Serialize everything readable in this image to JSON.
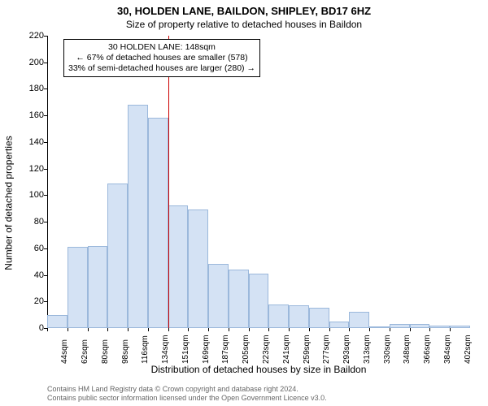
{
  "chart": {
    "type": "histogram",
    "title": "30, HOLDEN LANE, BAILDON, SHIPLEY, BD17 6HZ",
    "subtitle": "Size of property relative to detached houses in Baildon",
    "ylabel": "Number of detached properties",
    "xlabel": "Distribution of detached houses by size in Baildon",
    "ylim": [
      0,
      220
    ],
    "ytick_step": 20,
    "yticks": [
      0,
      20,
      40,
      60,
      80,
      100,
      120,
      140,
      160,
      180,
      200,
      220
    ],
    "xtick_labels": [
      "44sqm",
      "62sqm",
      "80sqm",
      "98sqm",
      "116sqm",
      "134sqm",
      "151sqm",
      "169sqm",
      "187sqm",
      "205sqm",
      "223sqm",
      "241sqm",
      "259sqm",
      "277sqm",
      "293sqm",
      "313sqm",
      "330sqm",
      "348sqm",
      "366sqm",
      "384sqm",
      "402sqm"
    ],
    "values": [
      10,
      61,
      62,
      109,
      168,
      158,
      92,
      89,
      48,
      44,
      41,
      18,
      17,
      15,
      5,
      12,
      1,
      3,
      3,
      2,
      2
    ],
    "bar_fill": "#d4e2f4",
    "bar_stroke": "#9bb8db",
    "background": "#ffffff",
    "axis_color": "#000000",
    "ref_line": {
      "index": 6,
      "color": "#cc0000"
    },
    "annotation": {
      "lines": [
        "30 HOLDEN LANE: 148sqm",
        "← 67% of detached houses are smaller (578)",
        "33% of semi-detached houses are larger (280) →"
      ]
    },
    "footer": [
      "Contains HM Land Registry data © Crown copyright and database right 2024.",
      "Contains public sector information licensed under the Open Government Licence v3.0."
    ],
    "title_fontsize": 13,
    "subtitle_fontsize": 12,
    "label_fontsize": 12,
    "tick_fontsize": 11,
    "xtick_fontsize": 10
  }
}
